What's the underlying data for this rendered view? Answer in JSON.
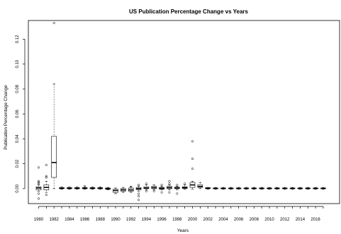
{
  "chart_data": {
    "type": "boxplot",
    "title": "US Publication Percentage Change vs Years",
    "xlabel": "Years",
    "ylabel": "Publication Percentage Change",
    "ylim": [
      -0.012,
      0.135
    ],
    "y_ticks": [
      "0.00",
      "0.02",
      "0.04",
      "0.06",
      "0.08",
      "0.10",
      "0.12"
    ],
    "x_tick_labels": [
      "1980",
      "1982",
      "1984",
      "1986",
      "1988",
      "1990",
      "1992",
      "1994",
      "1996",
      "1998",
      "2000",
      "2002",
      "2004",
      "2006",
      "2008",
      "2010",
      "2012",
      "2014",
      "2016"
    ],
    "categories": [
      "1980",
      "1981",
      "1982",
      "1983",
      "1984",
      "1985",
      "1986",
      "1987",
      "1988",
      "1989",
      "1990",
      "1991",
      "1992",
      "1993",
      "1994",
      "1995",
      "1996",
      "1997",
      "1998",
      "1999",
      "2000",
      "2001",
      "2002",
      "2003",
      "2004",
      "2005",
      "2006",
      "2007",
      "2008",
      "2009",
      "2010",
      "2011",
      "2012",
      "2013",
      "2014",
      "2015",
      "2016",
      "2017"
    ],
    "boxes": [
      {
        "year": "1980",
        "min": -0.002,
        "q1": -0.001,
        "median": 0.0005,
        "q3": 0.0015,
        "max": 0.003,
        "outliers": [
          0.017,
          0.006,
          0.005,
          0.004,
          -0.004,
          -0.008
        ]
      },
      {
        "year": "1981",
        "min": -0.003,
        "q1": -0.001,
        "median": 0.001,
        "q3": 0.003,
        "max": 0.006,
        "outliers": [
          0.019,
          0.01,
          0.009,
          -0.005
        ]
      },
      {
        "year": "1982",
        "min": 0.0,
        "q1": 0.009,
        "median": 0.021,
        "q3": 0.042,
        "max": 0.084,
        "outliers": [
          0.133
        ]
      },
      {
        "year": "1983",
        "min": -0.0005,
        "q1": 0.0,
        "median": 0.0003,
        "q3": 0.0008,
        "max": 0.0015,
        "outliers": []
      },
      {
        "year": "1984",
        "min": -0.0005,
        "q1": 0.0,
        "median": 0.0003,
        "q3": 0.0008,
        "max": 0.0015,
        "outliers": []
      },
      {
        "year": "1985",
        "min": -0.0005,
        "q1": 0.0,
        "median": 0.0003,
        "q3": 0.0008,
        "max": 0.0015,
        "outliers": []
      },
      {
        "year": "1986",
        "min": -0.0005,
        "q1": 0.0,
        "median": 0.0003,
        "q3": 0.0008,
        "max": 0.0015,
        "outliers": [
          0.002
        ]
      },
      {
        "year": "1987",
        "min": -0.0005,
        "q1": 0.0,
        "median": 0.0003,
        "q3": 0.0008,
        "max": 0.0015,
        "outliers": []
      },
      {
        "year": "1988",
        "min": -0.0005,
        "q1": 0.0,
        "median": 0.0003,
        "q3": 0.0008,
        "max": 0.0015,
        "outliers": []
      },
      {
        "year": "1989",
        "min": -0.001,
        "q1": -0.0005,
        "median": 0.0,
        "q3": 0.0005,
        "max": 0.001,
        "outliers": []
      },
      {
        "year": "1990",
        "min": -0.004,
        "q1": -0.003,
        "median": -0.0015,
        "q3": -0.0005,
        "max": 0.0005,
        "outliers": []
      },
      {
        "year": "1991",
        "min": -0.003,
        "q1": -0.002,
        "median": -0.001,
        "q3": 0.0,
        "max": 0.001,
        "outliers": []
      },
      {
        "year": "1992",
        "min": -0.003,
        "q1": -0.002,
        "median": -0.001,
        "q3": 0.0005,
        "max": 0.002,
        "outliers": [
          0.001
        ]
      },
      {
        "year": "1993",
        "min": -0.002,
        "q1": -0.0008,
        "median": 0.0,
        "q3": 0.0008,
        "max": 0.002,
        "outliers": [
          0.003,
          -0.004,
          -0.006,
          -0.009
        ]
      },
      {
        "year": "1994",
        "min": -0.001,
        "q1": 0.0,
        "median": 0.0005,
        "q3": 0.0015,
        "max": 0.003,
        "outliers": [
          0.004,
          -0.002
        ]
      },
      {
        "year": "1995",
        "min": -0.001,
        "q1": 0.0,
        "median": 0.0008,
        "q3": 0.0018,
        "max": 0.003,
        "outliers": [
          -0.002
        ]
      },
      {
        "year": "1996",
        "min": -0.001,
        "q1": -0.0005,
        "median": 0.0003,
        "q3": 0.001,
        "max": 0.002,
        "outliers": [
          0.003,
          -0.003
        ]
      },
      {
        "year": "1997",
        "min": -0.001,
        "q1": 0.0,
        "median": 0.0008,
        "q3": 0.0018,
        "max": 0.003,
        "outliers": [
          0.006,
          0.004,
          -0.003
        ]
      },
      {
        "year": "1998",
        "min": -0.001,
        "q1": 0.0,
        "median": 0.0005,
        "q3": 0.0012,
        "max": 0.002,
        "outliers": [
          0.003,
          -0.004
        ]
      },
      {
        "year": "1999",
        "min": -0.0005,
        "q1": 0.0,
        "median": 0.0008,
        "q3": 0.0015,
        "max": 0.003,
        "outliers": [
          0.004
        ]
      },
      {
        "year": "2000",
        "min": -0.0005,
        "q1": 0.001,
        "median": 0.003,
        "q3": 0.005,
        "max": 0.006,
        "outliers": [
          0.038,
          0.024,
          0.016
        ]
      },
      {
        "year": "2001",
        "min": 0.0,
        "q1": 0.001,
        "median": 0.0018,
        "q3": 0.003,
        "max": 0.005,
        "outliers": []
      },
      {
        "year": "2002",
        "min": -0.0005,
        "q1": 0.0,
        "median": 0.0003,
        "q3": 0.0008,
        "max": 0.001,
        "outliers": []
      },
      {
        "year": "2003",
        "min": -0.0005,
        "q1": 0.0,
        "median": 0.0002,
        "q3": 0.0005,
        "max": 0.001,
        "outliers": []
      },
      {
        "year": "2004",
        "min": -0.0005,
        "q1": 0.0,
        "median": 0.0002,
        "q3": 0.0005,
        "max": 0.001,
        "outliers": []
      },
      {
        "year": "2005",
        "min": -0.0005,
        "q1": 0.0,
        "median": 0.0002,
        "q3": 0.0005,
        "max": 0.001,
        "outliers": []
      },
      {
        "year": "2006",
        "min": -0.0005,
        "q1": 0.0,
        "median": 0.0002,
        "q3": 0.0005,
        "max": 0.001,
        "outliers": []
      },
      {
        "year": "2007",
        "min": -0.0005,
        "q1": 0.0,
        "median": 0.0002,
        "q3": 0.0005,
        "max": 0.001,
        "outliers": []
      },
      {
        "year": "2008",
        "min": -0.0005,
        "q1": 0.0,
        "median": 0.0002,
        "q3": 0.0005,
        "max": 0.001,
        "outliers": []
      },
      {
        "year": "2009",
        "min": -0.0005,
        "q1": 0.0,
        "median": 0.0002,
        "q3": 0.0005,
        "max": 0.001,
        "outliers": []
      },
      {
        "year": "2010",
        "min": -0.0005,
        "q1": 0.0,
        "median": 0.0002,
        "q3": 0.0005,
        "max": 0.001,
        "outliers": []
      },
      {
        "year": "2011",
        "min": -0.0005,
        "q1": 0.0,
        "median": 0.0002,
        "q3": 0.0005,
        "max": 0.001,
        "outliers": []
      },
      {
        "year": "2012",
        "min": -0.0005,
        "q1": 0.0,
        "median": 0.0002,
        "q3": 0.0005,
        "max": 0.001,
        "outliers": []
      },
      {
        "year": "2013",
        "min": -0.0005,
        "q1": 0.0,
        "median": 0.0002,
        "q3": 0.0005,
        "max": 0.001,
        "outliers": []
      },
      {
        "year": "2014",
        "min": -0.0005,
        "q1": 0.0,
        "median": 0.0002,
        "q3": 0.0005,
        "max": 0.001,
        "outliers": []
      },
      {
        "year": "2015",
        "min": -0.0005,
        "q1": 0.0,
        "median": 0.0002,
        "q3": 0.0005,
        "max": 0.001,
        "outliers": []
      },
      {
        "year": "2016",
        "min": -0.0005,
        "q1": 0.0,
        "median": 0.0002,
        "q3": 0.0005,
        "max": 0.001,
        "outliers": []
      },
      {
        "year": "2017",
        "min": -0.0005,
        "q1": 0.0,
        "median": 0.0002,
        "q3": 0.0005,
        "max": 0.001,
        "outliers": []
      }
    ],
    "grid": false,
    "colors": {
      "box_fill": "#ffffff",
      "stroke": "#000000",
      "whisker": "#444444"
    }
  }
}
